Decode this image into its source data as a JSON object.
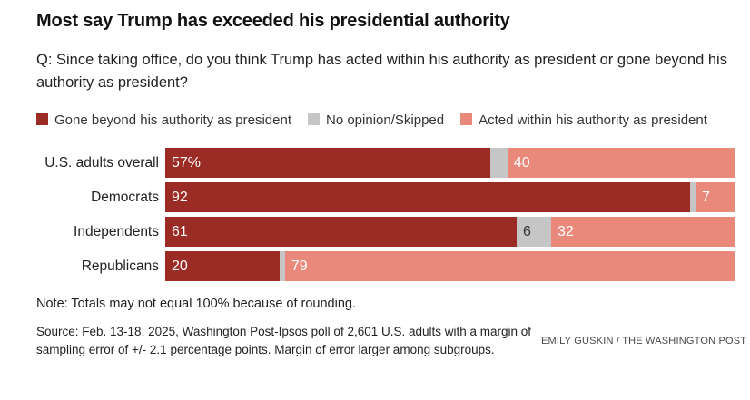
{
  "header": {
    "title": "Most say Trump has exceeded his presidential authority",
    "question": "Q: Since taking office, do you think Trump has acted within his authority as president or gone beyond his authority as president?"
  },
  "legend": [
    {
      "label": "Gone beyond his authority as president",
      "color": "#9b2b25"
    },
    {
      "label": "No opinion/Skipped",
      "color": "#c6c6c6"
    },
    {
      "label": "Acted within his authority as president",
      "color": "#e8897c"
    }
  ],
  "chart_data": {
    "type": "bar",
    "orientation": "horizontal",
    "stacked": true,
    "xlim": [
      0,
      100
    ],
    "unit": "percent",
    "categories": [
      "U.S. adults overall",
      "Democrats",
      "Independents",
      "Republicans"
    ],
    "series": [
      {
        "name": "Gone beyond his authority as president",
        "color": "#9b2b25",
        "values": [
          57,
          92,
          61,
          20
        ],
        "labels": [
          "57%",
          "92",
          "61",
          "20"
        ],
        "label_color": "#ffffff"
      },
      {
        "name": "No opinion/Skipped",
        "color": "#c6c6c6",
        "values": [
          3,
          1,
          6,
          1
        ],
        "labels": [
          "",
          "",
          "6",
          ""
        ],
        "label_color": "#333333"
      },
      {
        "name": "Acted within his authority as president",
        "color": "#e8897c",
        "values": [
          40,
          7,
          32,
          79
        ],
        "labels": [
          "40",
          "7",
          "32",
          "79"
        ],
        "label_color": "#ffffff"
      }
    ]
  },
  "footer": {
    "note": "Note: Totals may not equal 100% because of rounding.",
    "source": "Source: Feb. 13-18, 2025, Washington Post-Ipsos poll of 2,601 U.S. adults with a margin of sampling error of +/- 2.1 percentage points. Margin of error larger among subgroups.",
    "credit": "EMILY GUSKIN / THE WASHINGTON POST"
  }
}
